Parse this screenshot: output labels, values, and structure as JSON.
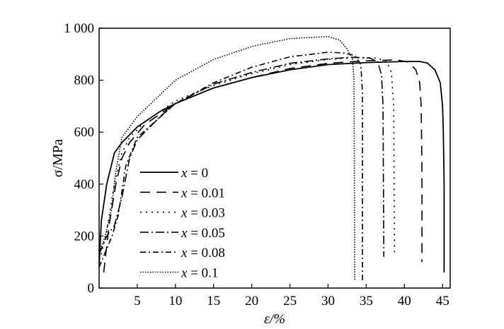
{
  "chart_data": {
    "type": "line",
    "title": "",
    "xlabel": "ε/%",
    "ylabel": "σ/MPa",
    "xlim": [
      0,
      46
    ],
    "ylim": [
      0,
      1000
    ],
    "x_ticks": [
      5,
      10,
      15,
      20,
      25,
      30,
      35,
      40,
      45
    ],
    "x_tick_labels": [
      "5",
      "10",
      "15",
      "20",
      "25",
      "30",
      "35",
      "40",
      "45"
    ],
    "y_ticks": [
      0,
      200,
      400,
      600,
      800,
      1000
    ],
    "y_tick_labels": [
      "0",
      "200",
      "400",
      "600",
      "800",
      "1 000"
    ],
    "grid": false,
    "legend_position": "lower-left",
    "series": [
      {
        "name": "x = 0",
        "var": "x",
        "val": "0",
        "dash": "none",
        "width": 1.8,
        "points": [
          [
            0,
            80
          ],
          [
            0.3,
            260
          ],
          [
            1,
            400
          ],
          [
            2,
            520
          ],
          [
            3,
            560
          ],
          [
            5,
            620
          ],
          [
            8,
            680
          ],
          [
            10,
            710
          ],
          [
            15,
            770
          ],
          [
            20,
            810
          ],
          [
            25,
            840
          ],
          [
            30,
            860
          ],
          [
            35,
            868
          ],
          [
            40,
            872
          ],
          [
            42,
            872
          ],
          [
            43,
            866
          ],
          [
            44,
            840
          ],
          [
            44.7,
            790
          ],
          [
            45,
            700
          ],
          [
            45.1,
            600
          ],
          [
            45.2,
            400
          ],
          [
            45.2,
            60
          ]
        ]
      },
      {
        "name": "x = 0.01",
        "var": "x",
        "val": "0.01",
        "dash": "14 9",
        "width": 1.6,
        "points": [
          [
            0.6,
            60
          ],
          [
            1.3,
            240
          ],
          [
            2.2,
            400
          ],
          [
            3,
            500
          ],
          [
            4,
            560
          ],
          [
            6,
            630
          ],
          [
            10,
            710
          ],
          [
            15,
            770
          ],
          [
            20,
            810
          ],
          [
            25,
            845
          ],
          [
            30,
            865
          ],
          [
            35,
            875
          ],
          [
            39,
            878
          ],
          [
            40.5,
            870
          ],
          [
            41.5,
            840
          ],
          [
            42,
            790
          ],
          [
            42.2,
            700
          ],
          [
            42.3,
            450
          ],
          [
            42.3,
            100
          ]
        ]
      },
      {
        "name": "x = 0.03",
        "var": "x",
        "val": "0.03",
        "dash": "2 6",
        "width": 1.6,
        "points": [
          [
            0.3,
            130
          ],
          [
            1,
            220
          ],
          [
            2,
            400
          ],
          [
            3,
            520
          ],
          [
            4,
            580
          ],
          [
            6,
            640
          ],
          [
            10,
            720
          ],
          [
            15,
            780
          ],
          [
            20,
            825
          ],
          [
            25,
            860
          ],
          [
            30,
            880
          ],
          [
            34,
            888
          ],
          [
            36.5,
            885
          ],
          [
            37.7,
            870
          ],
          [
            38.3,
            830
          ],
          [
            38.6,
            700
          ],
          [
            38.7,
            130
          ]
        ]
      },
      {
        "name": "x = 0.05",
        "var": "x",
        "val": "0.05",
        "dash": "12 4 2 4",
        "width": 1.6,
        "points": [
          [
            0,
            130
          ],
          [
            1,
            200
          ],
          [
            2,
            240
          ],
          [
            3,
            350
          ],
          [
            4,
            500
          ],
          [
            5,
            570
          ],
          [
            8,
            660
          ],
          [
            10,
            710
          ],
          [
            15,
            785
          ],
          [
            20,
            830
          ],
          [
            25,
            865
          ],
          [
            30,
            882
          ],
          [
            33,
            888
          ],
          [
            35.5,
            885
          ],
          [
            36.5,
            870
          ],
          [
            37,
            820
          ],
          [
            37.2,
            700
          ],
          [
            37.3,
            120
          ]
        ]
      },
      {
        "name": "x = 0.08",
        "var": "x",
        "val": "0.08",
        "dash": "8 4 2 4",
        "width": 1.6,
        "points": [
          [
            0,
            80
          ],
          [
            0.7,
            130
          ],
          [
            1.7,
            200
          ],
          [
            2.5,
            280
          ],
          [
            3.5,
            470
          ],
          [
            5,
            580
          ],
          [
            10,
            710
          ],
          [
            15,
            790
          ],
          [
            20,
            850
          ],
          [
            25,
            890
          ],
          [
            30,
            908
          ],
          [
            32,
            905
          ],
          [
            33.5,
            895
          ],
          [
            34.3,
            860
          ],
          [
            34.5,
            750
          ],
          [
            34.5,
            30
          ]
        ]
      },
      {
        "name": "x = 0.1",
        "var": "x",
        "val": "0.1",
        "dash": "1.5 2",
        "width": 1.6,
        "points": [
          [
            0.2,
            150
          ],
          [
            0.8,
            200
          ],
          [
            1.6,
            300
          ],
          [
            2.2,
            450
          ],
          [
            3,
            580
          ],
          [
            5,
            660
          ],
          [
            10,
            800
          ],
          [
            15,
            880
          ],
          [
            20,
            930
          ],
          [
            25,
            960
          ],
          [
            30,
            968
          ],
          [
            31.5,
            955
          ],
          [
            32.5,
            920
          ],
          [
            33.2,
            880
          ],
          [
            33.4,
            800
          ],
          [
            33.5,
            30
          ]
        ]
      }
    ]
  }
}
